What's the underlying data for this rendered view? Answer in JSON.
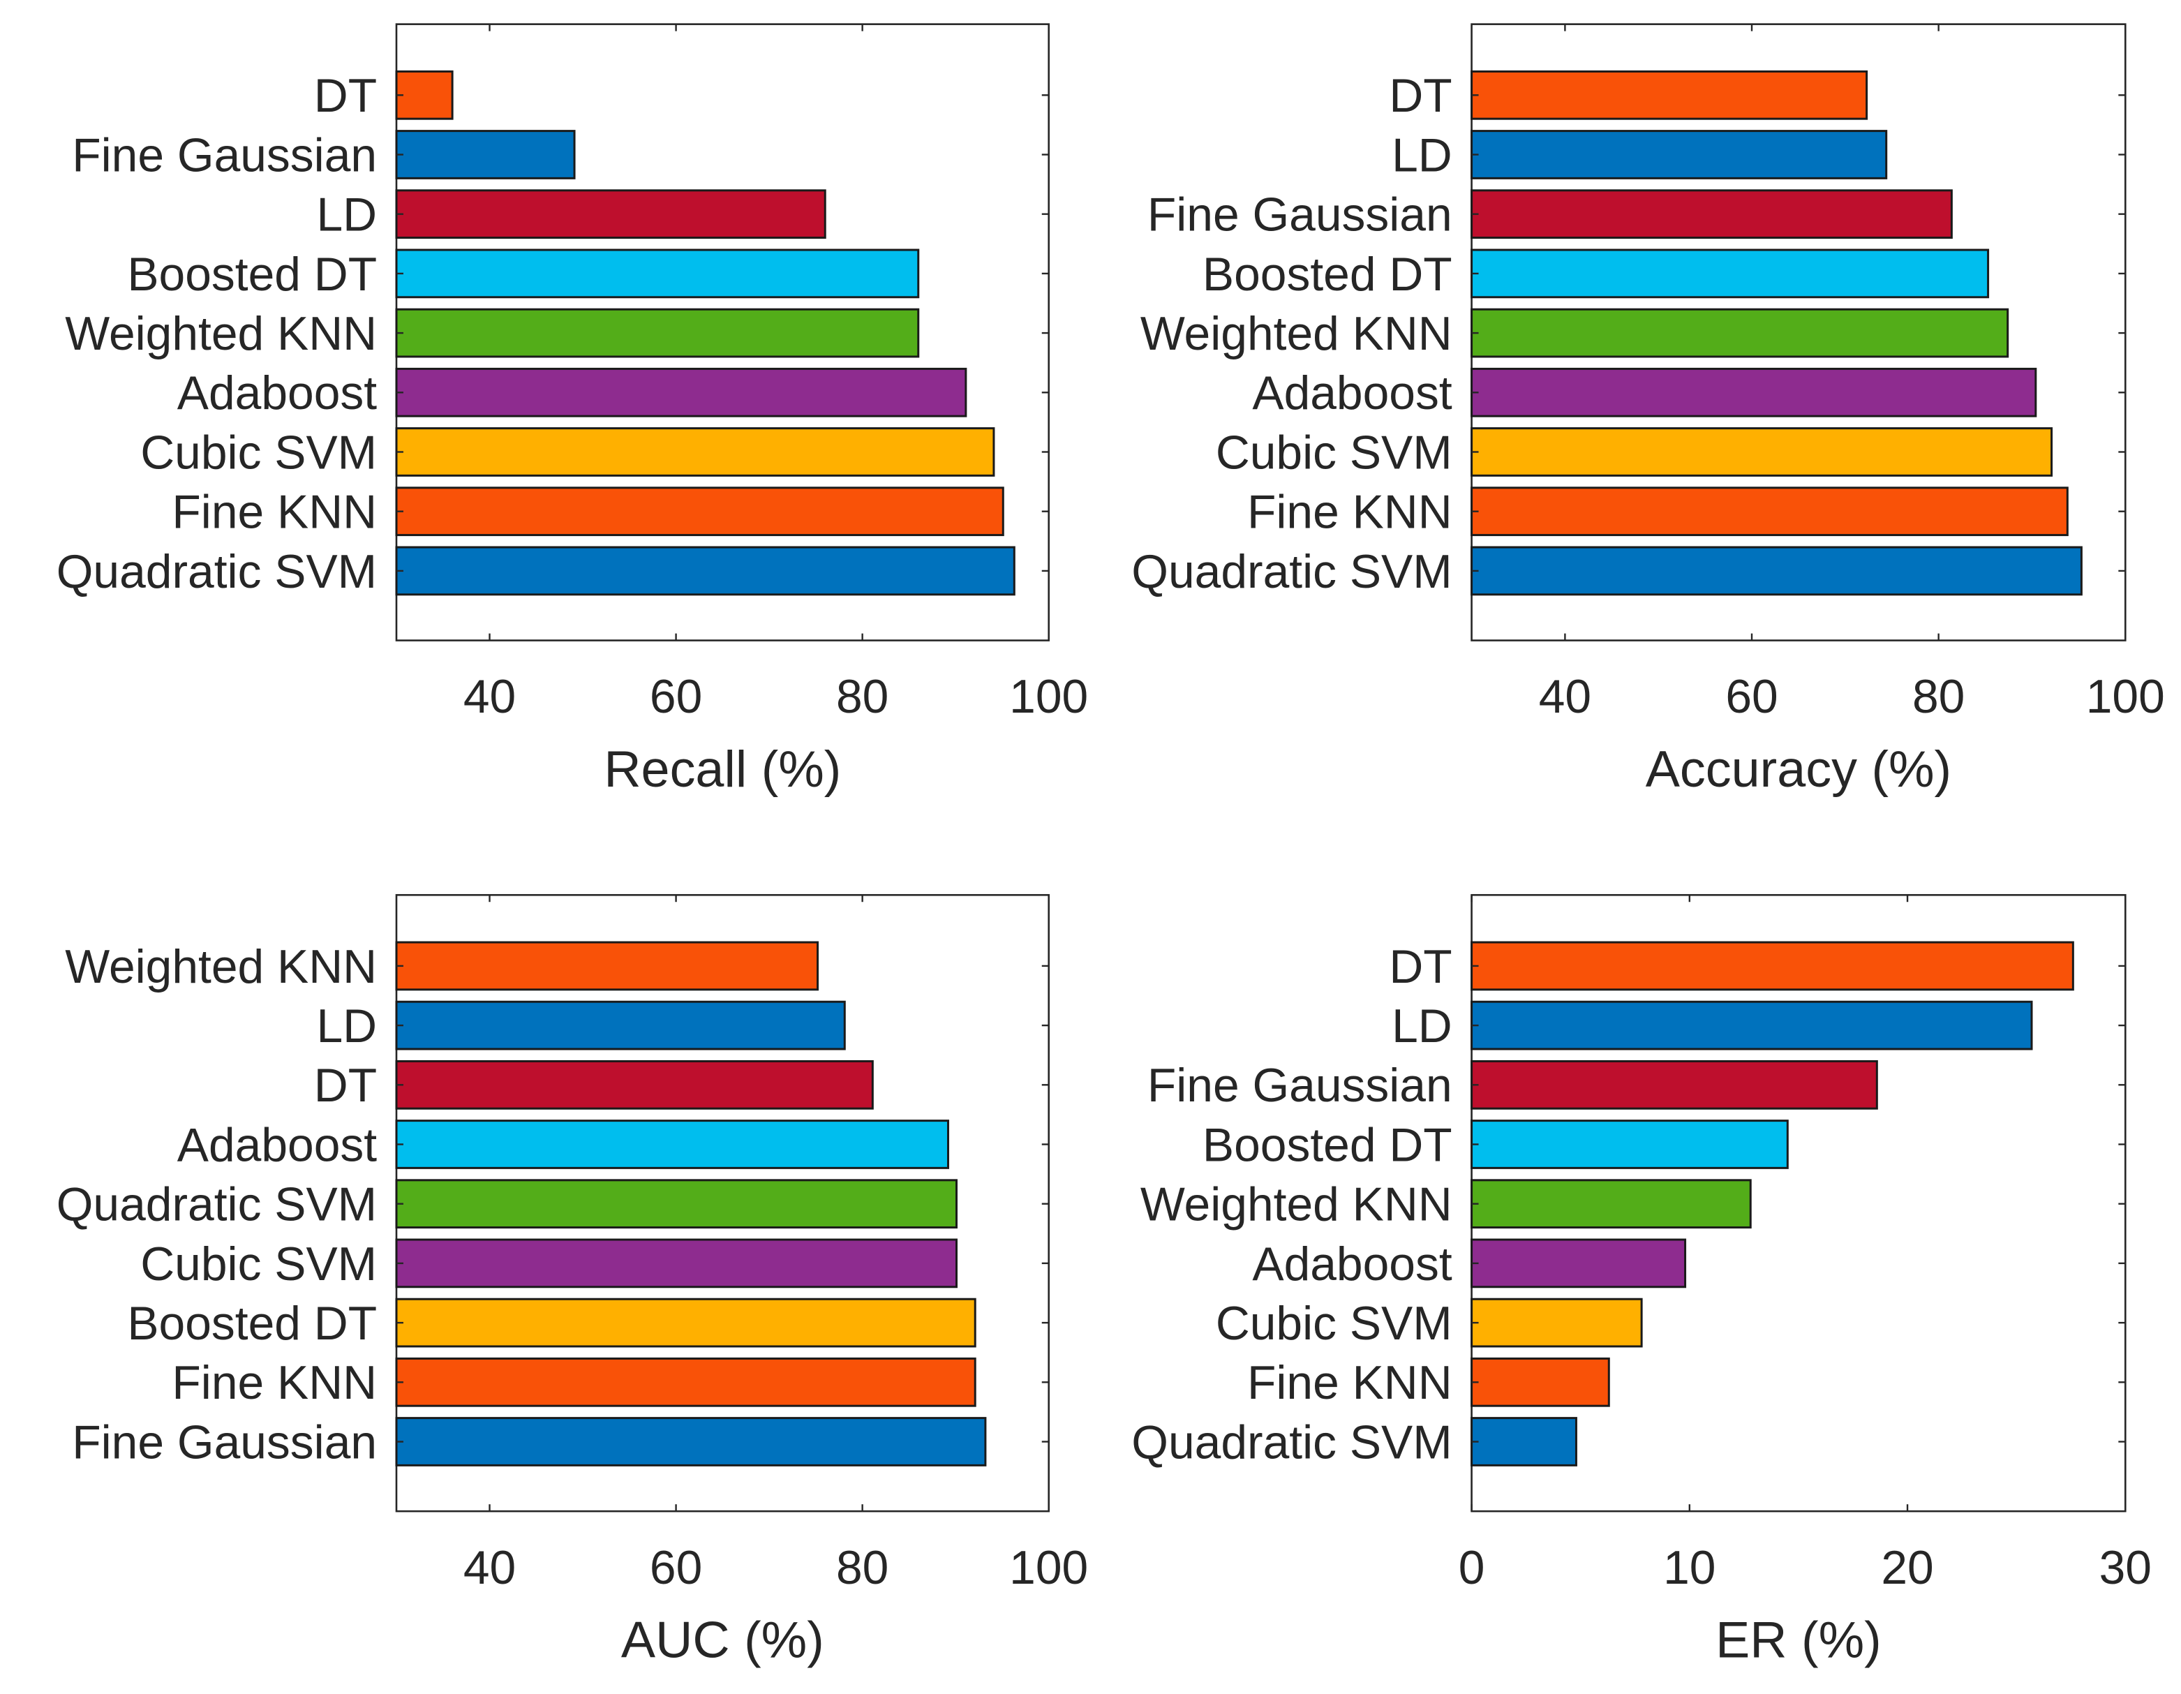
{
  "chart_data": [
    {
      "type": "bar",
      "orientation": "horizontal",
      "xlabel": "Recall (%)",
      "xlim": [
        30,
        100
      ],
      "xticks": [
        "40",
        "60",
        "80",
        "100"
      ],
      "xtick_values": [
        40,
        60,
        80,
        100
      ],
      "categories": [
        "DT",
        "Fine Gaussian",
        "LD",
        "Boosted DT",
        "Weighted KNN",
        "Adaboost",
        "Cubic SVM",
        "Fine KNN",
        "Quadratic SVM"
      ],
      "values": [
        36.0,
        49.1,
        76.0,
        86.0,
        86.0,
        91.1,
        94.1,
        95.1,
        96.3
      ],
      "colors": [
        "#F95208",
        "#0072BD",
        "#BE0F2D",
        "#00BEEE",
        "#53AD19",
        "#8E2C8F",
        "#FFB000",
        "#F95208",
        "#0072BD"
      ]
    },
    {
      "type": "bar",
      "orientation": "horizontal",
      "xlabel": "Accuracy (%)",
      "xlim": [
        30,
        100
      ],
      "xticks": [
        "40",
        "60",
        "80",
        "100"
      ],
      "xtick_values": [
        40,
        60,
        80,
        100
      ],
      "categories": [
        "DT",
        "LD",
        "Fine Gaussian",
        "Boosted DT",
        "Weighted KNN",
        "Adaboost",
        "Cubic SVM",
        "Fine KNN",
        "Quadratic SVM"
      ],
      "values": [
        72.3,
        74.4,
        81.4,
        85.3,
        87.4,
        90.4,
        92.1,
        93.8,
        95.3
      ],
      "colors": [
        "#F95208",
        "#0072BD",
        "#BE0F2D",
        "#00BEEE",
        "#53AD19",
        "#8E2C8F",
        "#FFB000",
        "#F95208",
        "#0072BD"
      ]
    },
    {
      "type": "bar",
      "orientation": "horizontal",
      "xlabel": "AUC (%)",
      "xlim": [
        30,
        100
      ],
      "xticks": [
        "40",
        "60",
        "80",
        "100"
      ],
      "xtick_values": [
        40,
        60,
        80,
        100
      ],
      "categories": [
        "Weighted KNN",
        "LD",
        "DT",
        "Adaboost",
        "Quadratic SVM",
        "Cubic SVM",
        "Boosted DT",
        "Fine KNN",
        "Fine Gaussian"
      ],
      "values": [
        75.2,
        78.1,
        81.1,
        89.2,
        90.1,
        90.1,
        92.1,
        92.1,
        93.2
      ],
      "colors": [
        "#F95208",
        "#0072BD",
        "#BE0F2D",
        "#00BEEE",
        "#53AD19",
        "#8E2C8F",
        "#FFB000",
        "#F95208",
        "#0072BD"
      ]
    },
    {
      "type": "bar",
      "orientation": "horizontal",
      "xlabel": "ER (%)",
      "xlim": [
        0,
        30
      ],
      "xticks": [
        "0",
        "10",
        "20",
        "30"
      ],
      "xtick_values": [
        0,
        10,
        20,
        30
      ],
      "categories": [
        "DT",
        "LD",
        "Fine Gaussian",
        "Boosted DT",
        "Weighted KNN",
        "Adaboost",
        "Cubic SVM",
        "Fine KNN",
        "Quadratic SVM"
      ],
      "values": [
        27.6,
        25.7,
        18.6,
        14.5,
        12.8,
        9.8,
        7.8,
        6.3,
        4.8
      ],
      "colors": [
        "#F95208",
        "#0072BD",
        "#BE0F2D",
        "#00BEEE",
        "#53AD19",
        "#8E2C8F",
        "#FFB000",
        "#F95208",
        "#0072BD"
      ]
    }
  ]
}
